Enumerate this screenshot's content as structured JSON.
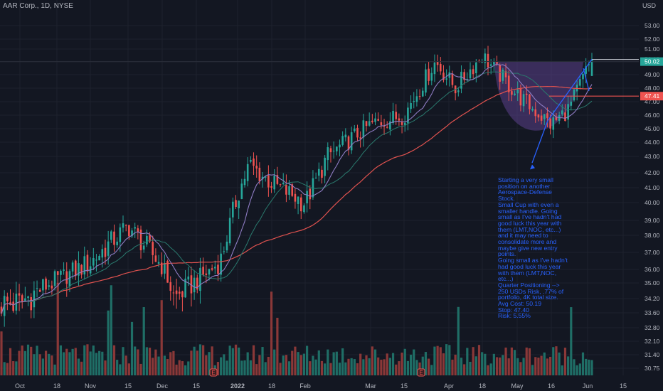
{
  "header": {
    "symbol_line": "AAR Corp., 1D, NYSE",
    "currency": "USD"
  },
  "colors": {
    "background": "#131722",
    "up": "#26a69a",
    "down": "#ef5350",
    "sma_purple": "#8e7cc3",
    "sma_green": "#2a7a6e",
    "sma_red": "#e0524f",
    "annotation": "#2962ff",
    "cup_fill": "#5b3f8a"
  },
  "chart_data": {
    "type": "candlestick",
    "ylim": [
      30.5,
      53.5
    ],
    "y_ticks": [
      "53.00",
      "52.00",
      "51.00",
      "50.00",
      "49.00",
      "48.00",
      "47.00",
      "46.00",
      "45.00",
      "44.00",
      "43.00",
      "42.00",
      "41.00",
      "40.00",
      "39.00",
      "38.00",
      "37.00",
      "36.00",
      "35.00",
      "34.20",
      "33.60",
      "32.80",
      "32.10",
      "31.40",
      "30.75"
    ],
    "x_ticks": [
      {
        "label": "Oct",
        "bold": false
      },
      {
        "label": "18",
        "bold": false
      },
      {
        "label": "Nov",
        "bold": false
      },
      {
        "label": "15",
        "bold": false
      },
      {
        "label": "Dec",
        "bold": false
      },
      {
        "label": "15",
        "bold": false
      },
      {
        "label": "2022",
        "bold": true
      },
      {
        "label": "18",
        "bold": false
      },
      {
        "label": "Feb",
        "bold": false
      },
      {
        "label": "Mar",
        "bold": false
      },
      {
        "label": "15",
        "bold": false
      },
      {
        "label": "Apr",
        "bold": false
      },
      {
        "label": "18",
        "bold": false
      },
      {
        "label": "May",
        "bold": false
      },
      {
        "label": "16",
        "bold": false
      },
      {
        "label": "Jun",
        "bold": false
      },
      {
        "label": "15",
        "bold": false
      }
    ],
    "series": [
      {
        "name": "price",
        "approx_close_keypoints": [
          [
            "Oct",
            34.0
          ],
          [
            "Nov",
            36.4
          ],
          [
            "Nov 15",
            38.6
          ],
          [
            "Dec",
            36.2
          ],
          [
            "Dec 10",
            34.2
          ],
          [
            "Dec 15",
            35.2
          ],
          [
            "Dec 28",
            36.5
          ],
          [
            "2022",
            40.5
          ],
          [
            "Jan 10",
            42.5
          ],
          [
            "Jan 18",
            41.3
          ],
          [
            "Feb",
            40.0
          ],
          [
            "Feb 10",
            43.0
          ],
          [
            "Mar",
            45.3
          ],
          [
            "Mar 15",
            46.0
          ],
          [
            "Apr",
            50.0
          ],
          [
            "Apr 10",
            48.0
          ],
          [
            "Apr 18",
            50.5
          ],
          [
            "May",
            47.5
          ],
          [
            "May 16",
            45.3
          ],
          [
            "May 25",
            46.5
          ],
          [
            "Jun",
            50.19
          ]
        ]
      }
    ],
    "price_tags": [
      {
        "value": "50.19",
        "price": 50.19,
        "style": "black"
      },
      {
        "value": "50.02",
        "price": 50.02,
        "style": "green"
      },
      {
        "value": "47.41",
        "price": 47.41,
        "style": "red"
      }
    ],
    "annotations": {
      "note": "Starting a very small position on another Aerospace-Defense Stock.\nSmall Cup with even a smaller handle. Going small as I've hadn't had good luck this year with them (LMT,NOC, etc...) and it may need to consolidate more and maybe give new entry points.\nGoing small as I've hadn't had good luck this year with them (LMT,NOC, etc...)\nQuarter Positioning --> 250 USDs Risk, .77% of portfolio, 4K total size.\nAvg Cost: 50.19\nStop: 47.40\nRisk: 5.55%"
    }
  }
}
